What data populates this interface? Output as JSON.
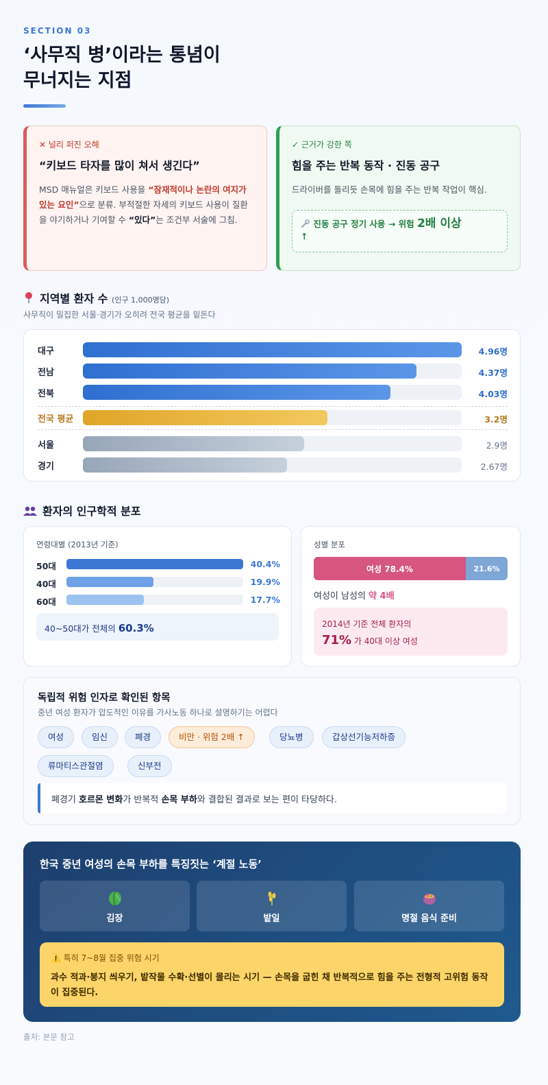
{
  "header": {
    "section": "SECTION 03",
    "title_line1": "‘사무직 병’이라는 통념이",
    "title_line2": "무너지는 지점"
  },
  "myth": {
    "tag": "✕ 널리 퍼진 오해",
    "head": "“키보드 타자를 많이 쳐서 생긴다”",
    "body_1": "MSD 매뉴얼은 키보드 사용을 ",
    "body_em": "“잠재적이나 논란의 여지가 있는 요인”",
    "body_2": "으로 분류. 부적절한 자세의 키보드 사용이 질환을 야기하거나 기여할 수 ",
    "body_q": "“있다”",
    "body_3": "는 조건부 서술에 그침."
  },
  "fact": {
    "tag": "✓ 근거가 강한 쪽",
    "head": "힘을 주는 반복 동작 · 진동 공구",
    "body": "드라이버를 돌리듯 손목에 힘을 주는 반복 작업이 핵심.",
    "box_text": "진동 공구 정기 사용 → 위험",
    "box_big": "2배 이상",
    "box_arrow": "↑"
  },
  "regional": {
    "title": "지역별 환자 수",
    "unit": "(인구 1,000명당)",
    "desc": "사무직이 밀집한 서울·경기가 오히려 전국 평균을 밑돈다",
    "rows": [
      {
        "name": "대구",
        "value": 4.96,
        "label": "4.96명"
      },
      {
        "name": "전남",
        "value": 4.37,
        "label": "4.37명"
      },
      {
        "name": "전북",
        "value": 4.03,
        "label": "4.03명"
      },
      {
        "name": "전국 평균",
        "value": 3.2,
        "label": "3.2명"
      },
      {
        "name": "서울",
        "value": 2.9,
        "label": "2.9명"
      },
      {
        "name": "경기",
        "value": 2.67,
        "label": "2.67명"
      }
    ]
  },
  "demo": {
    "title": "환자의 인구학적 분포",
    "age_title": "연령대별 (2013년 기준)",
    "ages": [
      {
        "name": "50대",
        "value": 40.4,
        "label": "40.4%"
      },
      {
        "name": "40대",
        "value": 19.9,
        "label": "19.9%"
      },
      {
        "name": "60대",
        "value": 17.7,
        "label": "17.7%"
      }
    ],
    "age_note": "40~50대가 전체의",
    "age_note_big": "60.3%",
    "sex_title": "성별 분포",
    "female_share": 78.4,
    "female_label": "여성 78.4%",
    "male_label": "21.6%",
    "ratio_text": "여성이 남성의",
    "ratio_big": "약 4배",
    "sex_note_1": "2014년 기준 전체 환자의",
    "sex_note_big": "71%",
    "sex_note_2": "가 40대 이상 여성"
  },
  "risk": {
    "title": "독립적 위험 인자로 확인된 항목",
    "desc": "중년 여성 환자가 압도적인 이유를 가사노동 하나로 설명하기는 어렵다",
    "pills": [
      "여성",
      "임신",
      "폐경",
      "비만 · 위험 2배 ↑",
      "당뇨병",
      "갑상선기능저하증",
      "류마티스관절염",
      "신부전"
    ],
    "quote_1": "폐경기 ",
    "quote_b1": "호르몬 변화",
    "quote_2": "가 반복적 ",
    "quote_b2": "손목 부하",
    "quote_3": "와 결합된 결과로 보는 편이 타당하다."
  },
  "season": {
    "title": "한국 중년 여성의 손목 부하를 특징짓는 ‘계절 노동’",
    "tiles": [
      {
        "icon": "cabbage-icon",
        "label": "김장"
      },
      {
        "icon": "crop-icon",
        "label": "밭일"
      },
      {
        "icon": "cooking-pot-icon",
        "label": "명절 음식 준비"
      }
    ],
    "warn_head": "⚠️ 특히 7~8월 집중 위험 시기",
    "warn_text": "과수 적과·봉지 씌우기, 밭작물 수확·선별이 몰리는 시기 — 손목을 굽힌 채 반복적으로 힘을 주는 전형적 고위험 동작이 집중된다."
  },
  "source": "출처: 본문 참고",
  "colors": {
    "accent": "#3b78d4",
    "myth": "#e05a5a",
    "fact": "#2f9e53",
    "female": "#d6567f",
    "male": "#7ea6d6",
    "avg": "#e0a528"
  }
}
